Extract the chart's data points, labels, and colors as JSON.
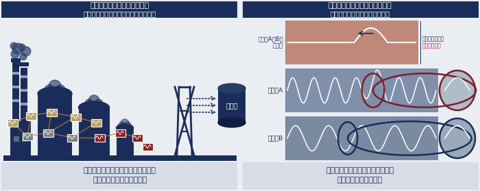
{
  "bg_color": "#eaedf2",
  "header_color": "#1a2d5a",
  "footer_bg": "#d8dce6",
  "header_left_text1": "「いつもの状態」を見える化",
  "header_left_text2": "＜インバリアント（不変性）モデル＞",
  "header_right_text1": "「いつもと違う」関係性を検知",
  "header_right_text2": "＜リアルタイム異常予兆検知＞",
  "footer_left_text1": "専門家でも気付きにくい関係性を、",
  "footer_left_text2": "機械的・自動的に見える化",
  "footer_right_text1": "すべての関係性を網羅的に見て、",
  "footer_right_text2": "早期に異常予兆を検知",
  "sensor_ab_label1": "センサA・Bの",
  "sensor_ab_label2": "異常度",
  "sensor_a_label": "センサA",
  "sensor_b_label": "センサB",
  "anomaly_label1": "異常度の高まり",
  "anomaly_label2": "異常予兆検知",
  "data_label": "データ",
  "sensor_ab_color": "#c08878",
  "sensor_a_color": "#8090aa",
  "sensor_b_color": "#7a8aa0",
  "dark_red": "#7a1e2e",
  "dark_blue": "#1a2d5a",
  "navy": "#1a2d5a",
  "orange": "#c87832",
  "divx": 0.5
}
